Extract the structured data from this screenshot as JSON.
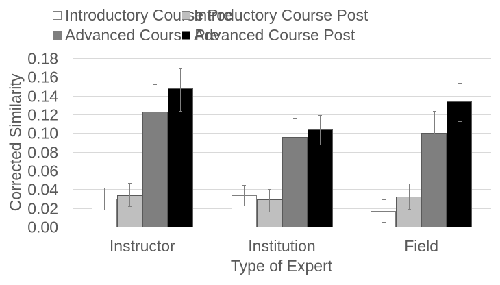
{
  "chart_data": {
    "type": "bar",
    "title": "",
    "xlabel": "Type of Expert",
    "ylabel": "Corrected Similarity",
    "ylim": [
      0,
      0.18
    ],
    "yticks": [
      "0.00",
      "0.02",
      "0.04",
      "0.06",
      "0.08",
      "0.10",
      "0.12",
      "0.14",
      "0.16",
      "0.18"
    ],
    "grid": true,
    "legend_position": "top",
    "categories": [
      "Instructor",
      "Institution",
      "Field"
    ],
    "series": [
      {
        "name": "Introductory Course Pre",
        "color": "#ffffff",
        "values": [
          0.03,
          0.034,
          0.017
        ],
        "error_high": [
          0.042,
          0.045,
          0.029
        ],
        "error_low": [
          0.018,
          0.023,
          0.005
        ]
      },
      {
        "name": "Introductory Course Post",
        "color": "#bfbfbf",
        "values": [
          0.034,
          0.029,
          0.032
        ],
        "error_high": [
          0.047,
          0.04,
          0.046
        ],
        "error_low": [
          0.022,
          0.016,
          0.019
        ]
      },
      {
        "name": "Advanced Course Pre",
        "color": "#7f7f7f",
        "values": [
          0.123,
          0.096,
          0.1
        ],
        "error_high": [
          0.152,
          0.116,
          0.124
        ],
        "error_low": [
          0.095,
          0.075,
          0.075
        ]
      },
      {
        "name": "Advanced Course Post",
        "color": "#000000",
        "values": [
          0.148,
          0.104,
          0.134
        ],
        "error_high": [
          0.17,
          0.119,
          0.154
        ],
        "error_low": [
          0.124,
          0.088,
          0.113
        ]
      }
    ]
  },
  "legend": {
    "items": [
      {
        "label": "Introductory Course Pre",
        "color": "#ffffff"
      },
      {
        "label": "Introductory Course Post",
        "color": "#bfbfbf"
      },
      {
        "label": "Advanced Course Pre",
        "color": "#7f7f7f"
      },
      {
        "label": "Advanced Course Post",
        "color": "#000000"
      }
    ]
  },
  "axes": {
    "ylabel": "Corrected Similarity",
    "xlabel": "Type of Expert"
  }
}
